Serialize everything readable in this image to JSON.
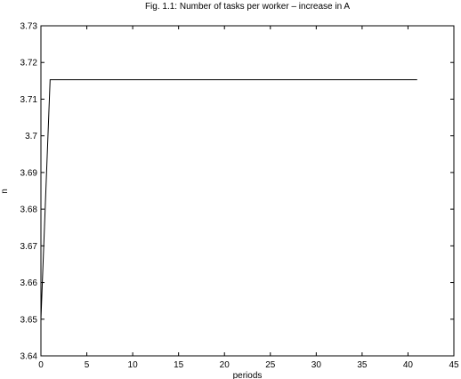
{
  "chart_data": {
    "type": "line",
    "title": "Fig. 1.1: Number of tasks per worker – increase in A",
    "xlabel": "periods",
    "ylabel": "n",
    "xlim": [
      0,
      45
    ],
    "ylim": [
      3.64,
      3.73
    ],
    "xticks": [
      0,
      5,
      10,
      15,
      20,
      25,
      30,
      35,
      40,
      45
    ],
    "xtick_labels": [
      "0",
      "5",
      "10",
      "15",
      "20",
      "25",
      "30",
      "35",
      "40",
      "45"
    ],
    "yticks": [
      3.64,
      3.65,
      3.66,
      3.67,
      3.68,
      3.69,
      3.7,
      3.71,
      3.72,
      3.73
    ],
    "ytick_labels": [
      "3.64",
      "3.65",
      "3.66",
      "3.67",
      "3.68",
      "3.69",
      "3.7",
      "3.71",
      "3.72",
      "3.73"
    ],
    "grid": false,
    "series": [
      {
        "x": [
          0,
          1,
          41
        ],
        "y": [
          3.65,
          3.7153,
          3.7153
        ],
        "color": "#000000"
      }
    ]
  }
}
